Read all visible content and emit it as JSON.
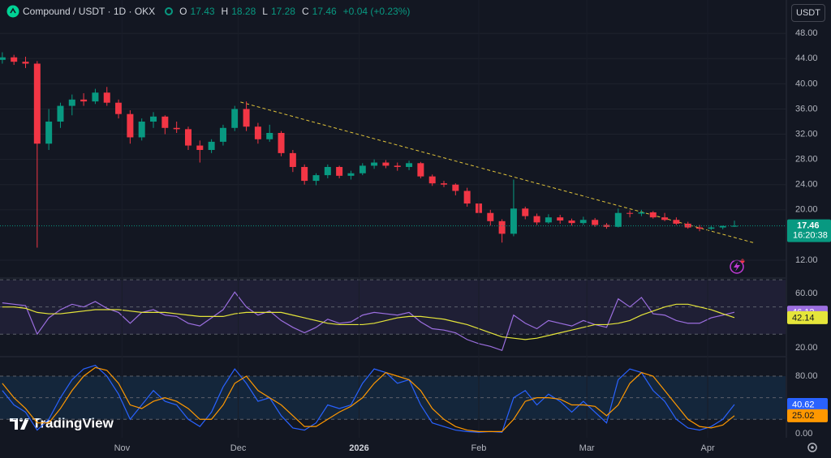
{
  "chart_data": [
    {
      "type": "candlestick",
      "symbol": "Compound / USDT · 1D · OKX",
      "ohlc_labels": [
        "O",
        "H",
        "L",
        "C"
      ],
      "change": "+0.04 (+0.23%)",
      "currency": "USDT",
      "countdown": "16:20:38",
      "watermark": "TradingView",
      "up_color": "#089981",
      "down_color": "#f23645",
      "grid": true,
      "xlim": [
        -0.2,
        67.4
      ],
      "ylim": [
        9.3,
        53.3
      ],
      "yticks": [
        {
          "value": 12,
          "label": "12.00"
        },
        {
          "value": 20,
          "label": "20.00"
        },
        {
          "value": 24,
          "label": "24.00"
        },
        {
          "value": 28,
          "label": "28.00"
        },
        {
          "value": 32,
          "label": "32.00"
        },
        {
          "value": 36,
          "label": "36.00"
        },
        {
          "value": 40,
          "label": "40.00"
        },
        {
          "value": 44,
          "label": "44.00"
        },
        {
          "value": 48,
          "label": "48.00"
        }
      ],
      "trendline": {
        "x": [
          20.5,
          64.8
        ],
        "y": [
          37.1,
          14.7
        ],
        "color": "#e0c33a"
      },
      "candles": [
        [
          43.8,
          45,
          43.2,
          44.2
        ],
        [
          44.2,
          44.6,
          43,
          43.5
        ],
        [
          43.5,
          44.3,
          42.5,
          43.2
        ],
        [
          43.2,
          43.6,
          14,
          30.5
        ],
        [
          30.5,
          36,
          29.5,
          34
        ],
        [
          34,
          37,
          33,
          36.5
        ],
        [
          36.5,
          38.3,
          35,
          37.5
        ],
        [
          37.5,
          38.5,
          36.5,
          37.2
        ],
        [
          37.2,
          39.2,
          36.8,
          38.6
        ],
        [
          38.6,
          39.5,
          36.5,
          37
        ],
        [
          37,
          37.5,
          34.5,
          35.2
        ],
        [
          35.2,
          35.8,
          30.5,
          31.5
        ],
        [
          31.5,
          34.5,
          31,
          34
        ],
        [
          34,
          35.5,
          33,
          34.8
        ],
        [
          34.8,
          35,
          32,
          33
        ],
        [
          33,
          34,
          32.2,
          32.8
        ],
        [
          32.8,
          33.2,
          29.5,
          30.2
        ],
        [
          30.2,
          31,
          27.5,
          29.5
        ],
        [
          29.5,
          31.2,
          29,
          30.8
        ],
        [
          30.8,
          33.5,
          30.2,
          33
        ],
        [
          33,
          36.5,
          32.5,
          36
        ],
        [
          36,
          37.2,
          32.5,
          33.2
        ],
        [
          33.2,
          33.8,
          30.5,
          31.2
        ],
        [
          31.2,
          33.5,
          30.8,
          32.2
        ],
        [
          32.2,
          32.5,
          28.5,
          29
        ],
        [
          29,
          29.5,
          26,
          26.8
        ],
        [
          26.8,
          27.2,
          24,
          24.6
        ],
        [
          24.6,
          25.8,
          23.9,
          25.5
        ],
        [
          25.5,
          27.2,
          25,
          26.8
        ],
        [
          26.8,
          27,
          25,
          25.4
        ],
        [
          25.4,
          26.2,
          24.8,
          25.8
        ],
        [
          25.8,
          27.4,
          25.5,
          27
        ],
        [
          27,
          28,
          26.5,
          27.5
        ],
        [
          27.5,
          27.9,
          26.6,
          27
        ],
        [
          27,
          27.5,
          26.2,
          26.8
        ],
        [
          26.8,
          27.8,
          26.3,
          27.4
        ],
        [
          27.4,
          27.6,
          25,
          25.3
        ],
        [
          25.3,
          25.6,
          23.8,
          24.2
        ],
        [
          24.2,
          24.6,
          23.6,
          24
        ],
        [
          24,
          24.2,
          22.3,
          23
        ],
        [
          23,
          23.5,
          20.5,
          21
        ],
        [
          21,
          21.2,
          18.8,
          19.5
        ],
        [
          19.5,
          20,
          17.5,
          18.2
        ],
        [
          18.2,
          18.5,
          14.8,
          16.2
        ],
        [
          16.2,
          24.8,
          15.8,
          20.2
        ],
        [
          20.2,
          20.5,
          18.5,
          19
        ],
        [
          19,
          19.4,
          17.6,
          18
        ],
        [
          18,
          19.3,
          17.8,
          18.8
        ],
        [
          18.8,
          19.2,
          17.8,
          18.3
        ],
        [
          18.3,
          18.6,
          17.5,
          17.9
        ],
        [
          17.9,
          18.9,
          17.6,
          18.4
        ],
        [
          18.4,
          18.7,
          17.3,
          17.6
        ],
        [
          17.6,
          17.9,
          17,
          17.3
        ],
        [
          17.3,
          20.2,
          17.2,
          19.5
        ],
        [
          19.5,
          19.9,
          18.8,
          19.4
        ],
        [
          19.4,
          20,
          19,
          19.6
        ],
        [
          19.6,
          19.8,
          18.6,
          18.8
        ],
        [
          18.8,
          19.5,
          18.2,
          18.4
        ],
        [
          18.4,
          18.8,
          17.6,
          17.8
        ],
        [
          17.8,
          18.1,
          17,
          17.2
        ],
        [
          17.2,
          17.6,
          16.6,
          17
        ],
        [
          17,
          17.5,
          16.8,
          17.2
        ],
        [
          17.2,
          17.5,
          16.9,
          17.43
        ],
        [
          17.43,
          18.28,
          17.28,
          17.46
        ]
      ]
    },
    {
      "type": "line",
      "xlim": [
        -0.2,
        67.4
      ],
      "ylim": [
        13.4,
        70.7
      ],
      "yticks": [
        {
          "value": 20,
          "label": "20.00"
        },
        {
          "value": 60,
          "label": "60.00"
        }
      ],
      "band": [
        30,
        70
      ],
      "band_color": "rgba(126,87,194,0.12)",
      "hlines": [
        70,
        50,
        30
      ],
      "series": [
        {
          "color": "#9c6fe0",
          "values": [
            53,
            52,
            51,
            30,
            42,
            48,
            52,
            50,
            54,
            49,
            46,
            38,
            46,
            48,
            44,
            43,
            38,
            36,
            42,
            48,
            61,
            50,
            44,
            47,
            40,
            35,
            31,
            35,
            41,
            38,
            39,
            44,
            46,
            45,
            44,
            46,
            39,
            34,
            33,
            31,
            26,
            23,
            21,
            18,
            44,
            38,
            34,
            40,
            38,
            36,
            40,
            37,
            35,
            56,
            50,
            57,
            45,
            44,
            40,
            38,
            38,
            42,
            44,
            46.12
          ]
        },
        {
          "color": "#e5e53a",
          "values": [
            50,
            50,
            49,
            46,
            45,
            45,
            46,
            47,
            48,
            48,
            48,
            47,
            46,
            46,
            46,
            45,
            44,
            43,
            43,
            43,
            45,
            46,
            46,
            46,
            46,
            44,
            42,
            40,
            38,
            37,
            37,
            37,
            38,
            40,
            42,
            43,
            43,
            42,
            41,
            39,
            37,
            34,
            31,
            28,
            27,
            26,
            27,
            29,
            31,
            33,
            35,
            37,
            37,
            38,
            40,
            44,
            47,
            50,
            52,
            52,
            50,
            48,
            45,
            42.14
          ]
        }
      ]
    },
    {
      "type": "line",
      "xlim": [
        -0.2,
        67.4
      ],
      "ylim": [
        -5.6,
        105.9
      ],
      "yticks": [
        {
          "value": 0,
          "label": "0.00"
        },
        {
          "value": 80,
          "label": "80.00"
        }
      ],
      "xticks": [
        {
          "value": 10.3,
          "label": "Nov"
        },
        {
          "value": 20.3,
          "label": "Dec"
        },
        {
          "value": 30.7,
          "label": "2026"
        },
        {
          "value": 41,
          "label": "Feb"
        },
        {
          "value": 50.3,
          "label": "Mar"
        },
        {
          "value": 60.7,
          "label": "Apr"
        }
      ],
      "band": [
        20,
        80
      ],
      "band_color": "rgba(33,150,243,0.12)",
      "hlines": [
        80,
        50,
        20
      ],
      "series": [
        {
          "color": "#2962ff",
          "values": [
            60,
            40,
            30,
            5,
            20,
            50,
            75,
            90,
            95,
            80,
            55,
            20,
            40,
            60,
            45,
            40,
            20,
            10,
            30,
            65,
            90,
            70,
            45,
            50,
            25,
            8,
            5,
            15,
            40,
            35,
            40,
            70,
            90,
            85,
            70,
            75,
            40,
            15,
            10,
            5,
            3,
            2,
            3,
            2,
            50,
            60,
            40,
            55,
            45,
            30,
            45,
            30,
            15,
            75,
            90,
            85,
            60,
            45,
            20,
            8,
            5,
            10,
            20,
            40.62
          ]
        },
        {
          "color": "#ff9800",
          "values": [
            70,
            50,
            35,
            15,
            15,
            35,
            60,
            80,
            92,
            88,
            70,
            40,
            35,
            45,
            50,
            45,
            35,
            20,
            20,
            40,
            70,
            80,
            60,
            50,
            40,
            25,
            10,
            10,
            20,
            30,
            38,
            50,
            70,
            85,
            80,
            75,
            60,
            35,
            20,
            10,
            5,
            3,
            3,
            3,
            20,
            45,
            50,
            50,
            48,
            40,
            40,
            38,
            25,
            40,
            70,
            85,
            80,
            60,
            40,
            20,
            10,
            8,
            12,
            25.02
          ]
        }
      ]
    }
  ]
}
